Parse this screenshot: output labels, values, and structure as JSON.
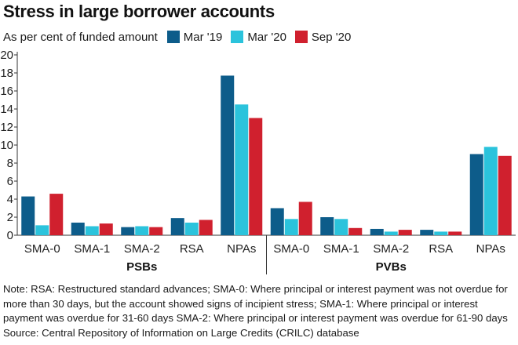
{
  "title": "Stress in large borrower accounts",
  "subtitle": "As per cent of funded amount",
  "colors": {
    "Mar '19": "#0d5c8a",
    "Mar '20": "#2bc3dc",
    "Sep '20": "#d0202e"
  },
  "chart_data": {
    "type": "bar",
    "title": "Stress in large borrower accounts",
    "ylabel": "As per cent of funded amount",
    "ylim": [
      0,
      20
    ],
    "yticks": [
      0,
      2,
      4,
      6,
      8,
      10,
      12,
      14,
      16,
      18,
      20
    ],
    "groups": [
      "PSBs",
      "PVBs"
    ],
    "categories": [
      "SMA-0",
      "SMA-1",
      "SMA-2",
      "RSA",
      "NPAs"
    ],
    "legend_position": "top",
    "grid": false,
    "series": [
      {
        "name": "Mar '19",
        "color": "#0d5c8a",
        "psbs": [
          4.3,
          1.4,
          0.9,
          1.9,
          17.7
        ],
        "pvbs": [
          3.0,
          2.0,
          0.7,
          0.6,
          9.0
        ]
      },
      {
        "name": "Mar '20",
        "color": "#2bc3dc",
        "psbs": [
          1.1,
          1.0,
          1.0,
          1.4,
          14.5
        ],
        "pvbs": [
          1.8,
          1.8,
          0.4,
          0.4,
          9.8
        ]
      },
      {
        "name": "Sep '20",
        "color": "#d0202e",
        "psbs": [
          4.6,
          1.3,
          0.9,
          1.7,
          13.0
        ],
        "pvbs": [
          3.7,
          0.8,
          0.6,
          0.4,
          8.8
        ]
      }
    ]
  },
  "notes": {
    "note": "Note: RSA: Restructured standard advances; SMA-0: Where principal or interest payment was not overdue for more than 30 days, but the account showed signs of incipient stress; SMA-1: Where principal or interest payment was overdue for 31-60 days SMA-2: Where principal or interest payment was overdue for 61-90 days",
    "source": "Source: Central Repository of Information on Large Credits (CRILC) database"
  }
}
